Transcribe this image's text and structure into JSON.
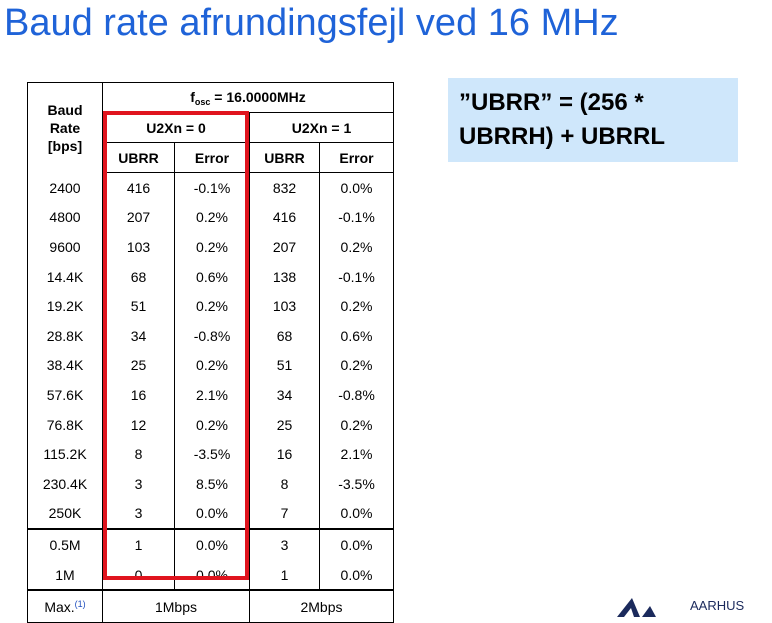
{
  "slide": {
    "title": "Baud rate afrundingsfejl ved 16 MHz"
  },
  "formula": {
    "line1": "”UBRR” = (256 *",
    "line2": "UBRRH) + UBRRL"
  },
  "table": {
    "fosc_prefix": "f",
    "fosc_sub": "osc",
    "fosc_value": " = 16.0000MHz",
    "baud_header": [
      "Baud",
      "Rate",
      "[bps]"
    ],
    "group_labels": [
      "U2Xn = 0",
      "U2Xn = 1"
    ],
    "col_labels": [
      "UBRR",
      "Error",
      "UBRR",
      "Error"
    ],
    "rows": [
      [
        "2400",
        "416",
        "-0.1%",
        "832",
        "0.0%"
      ],
      [
        "4800",
        "207",
        "0.2%",
        "416",
        "-0.1%"
      ],
      [
        "9600",
        "103",
        "0.2%",
        "207",
        "0.2%"
      ],
      [
        "14.4K",
        "68",
        "0.6%",
        "138",
        "-0.1%"
      ],
      [
        "19.2K",
        "51",
        "0.2%",
        "103",
        "0.2%"
      ],
      [
        "28.8K",
        "34",
        "-0.8%",
        "68",
        "0.6%"
      ],
      [
        "38.4K",
        "25",
        "0.2%",
        "51",
        "0.2%"
      ],
      [
        "57.6K",
        "16",
        "2.1%",
        "34",
        "-0.8%"
      ],
      [
        "76.8K",
        "12",
        "0.2%",
        "25",
        "0.2%"
      ],
      [
        "115.2K",
        "8",
        "-3.5%",
        "16",
        "2.1%"
      ],
      [
        "230.4K",
        "3",
        "8.5%",
        "8",
        "-3.5%"
      ],
      [
        "250K",
        "3",
        "0.0%",
        "7",
        "0.0%"
      ],
      [
        "0.5M",
        "1",
        "0.0%",
        "3",
        "0.0%"
      ],
      [
        "1M",
        "0",
        "0.0%",
        "1",
        "0.0%"
      ]
    ],
    "max_label": "Max.",
    "max_note": "(1)",
    "max_values": [
      "1Mbps",
      "2Mbps"
    ]
  },
  "logo": {
    "text": "AARHUS",
    "icon": "aarhus-logo-icon"
  },
  "colors": {
    "title": "#1f63d8",
    "formula_bg": "#cfe7fb",
    "highlight_box": "#e0141e"
  }
}
